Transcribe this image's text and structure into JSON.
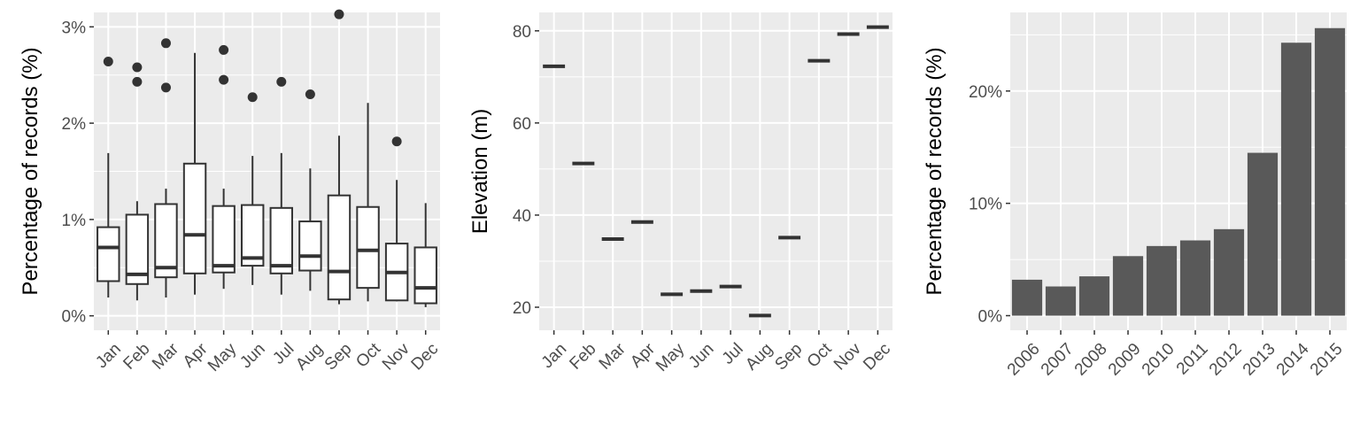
{
  "chart_data": [
    {
      "type": "box",
      "title": "",
      "xlabel": "",
      "ylabel": "Percentage of records (%)",
      "ylim": [
        -0.0015,
        0.0315
      ],
      "yticks": [
        0,
        0.01,
        0.02,
        0.03
      ],
      "ytick_labels": [
        "0%",
        "1%",
        "2%",
        "3%"
      ],
      "grid": true,
      "categories": [
        "Jan",
        "Feb",
        "Mar",
        "Apr",
        "May",
        "Jun",
        "Jul",
        "Aug",
        "Sep",
        "Oct",
        "Nov",
        "Dec"
      ],
      "boxes": [
        {
          "min": 0.0019,
          "q1": 0.0036,
          "median": 0.0071,
          "q3": 0.0092,
          "max": 0.0169,
          "outliers": [
            0.0264
          ]
        },
        {
          "min": 0.0016,
          "q1": 0.0033,
          "median": 0.0043,
          "q3": 0.0105,
          "max": 0.0119,
          "outliers": [
            0.0258,
            0.0243
          ]
        },
        {
          "min": 0.0019,
          "q1": 0.004,
          "median": 0.005,
          "q3": 0.0116,
          "max": 0.0132,
          "outliers": [
            0.0283,
            0.0237
          ]
        },
        {
          "min": 0.0022,
          "q1": 0.0044,
          "median": 0.0084,
          "q3": 0.0158,
          "max": 0.0273,
          "outliers": []
        },
        {
          "min": 0.0028,
          "q1": 0.0045,
          "median": 0.0052,
          "q3": 0.0114,
          "max": 0.0132,
          "outliers": [
            0.0276,
            0.0245
          ]
        },
        {
          "min": 0.0032,
          "q1": 0.0052,
          "median": 0.006,
          "q3": 0.0115,
          "max": 0.0166,
          "outliers": [
            0.0227
          ]
        },
        {
          "min": 0.0022,
          "q1": 0.0044,
          "median": 0.0052,
          "q3": 0.0112,
          "max": 0.0169,
          "outliers": [
            0.0243
          ]
        },
        {
          "min": 0.0026,
          "q1": 0.0047,
          "median": 0.0062,
          "q3": 0.0098,
          "max": 0.0153,
          "outliers": [
            0.023
          ]
        },
        {
          "min": 0.0012,
          "q1": 0.0017,
          "median": 0.0046,
          "q3": 0.0125,
          "max": 0.0187,
          "outliers": [
            0.0313
          ]
        },
        {
          "min": 0.0015,
          "q1": 0.0029,
          "median": 0.0068,
          "q3": 0.0113,
          "max": 0.0221,
          "outliers": []
        },
        {
          "min": 0.0015,
          "q1": 0.0016,
          "median": 0.0045,
          "q3": 0.0075,
          "max": 0.0141,
          "outliers": [
            0.0181
          ]
        },
        {
          "min": 0.0009,
          "q1": 0.0013,
          "median": 0.0029,
          "q3": 0.0071,
          "max": 0.0117,
          "outliers": []
        }
      ]
    },
    {
      "type": "box",
      "title": "",
      "xlabel": "",
      "ylabel": "Elevation (m)",
      "ylim": [
        15,
        84
      ],
      "yticks": [
        20,
        40,
        60,
        80
      ],
      "ytick_labels": [
        "20",
        "40",
        "60",
        "80"
      ],
      "grid": true,
      "categories": [
        "Jan",
        "Feb",
        "Mar",
        "Apr",
        "May",
        "Jun",
        "Jul",
        "Aug",
        "Sep",
        "Oct",
        "Nov",
        "Dec"
      ],
      "values": [
        72.3,
        51.2,
        34.8,
        38.5,
        22.8,
        23.5,
        24.5,
        18.2,
        35.1,
        73.5,
        79.3,
        80.8
      ]
    },
    {
      "type": "bar",
      "title": "",
      "xlabel": "",
      "ylabel": "Percentage of records (%)",
      "ylim": [
        -0.013,
        0.27
      ],
      "yticks": [
        0,
        0.1,
        0.2
      ],
      "ytick_labels": [
        "0%",
        "10%",
        "20%"
      ],
      "grid": true,
      "categories": [
        "2006",
        "2007",
        "2008",
        "2009",
        "2010",
        "2011",
        "2012",
        "2013",
        "2014",
        "2015"
      ],
      "values": [
        0.032,
        0.026,
        0.035,
        0.053,
        0.062,
        0.067,
        0.077,
        0.145,
        0.243,
        0.256
      ],
      "bar_color": "#595959"
    }
  ]
}
